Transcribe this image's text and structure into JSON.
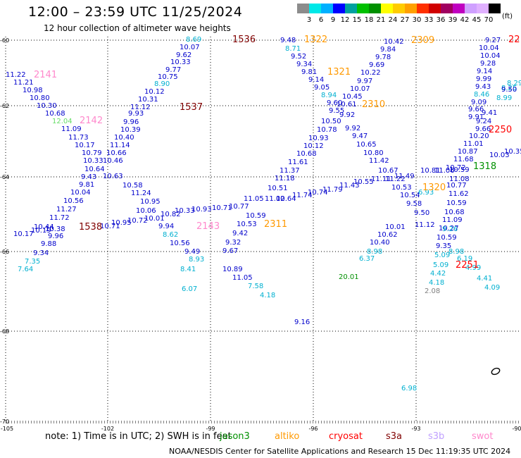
{
  "header": {
    "title": "12:00 – 23:59 UTC 11/25/2024",
    "subtitle": "12 hour collection of altimeter wave heights"
  },
  "legend": {
    "levels": [
      "3",
      "6",
      "9",
      "12",
      "15",
      "18",
      "21",
      "24",
      "27",
      "30",
      "33",
      "36",
      "39",
      "42",
      "45",
      "70"
    ],
    "colors": [
      "#8c8c8c",
      "#00e8e8",
      "#00b0ff",
      "#0000ff",
      "#00a0a0",
      "#00c000",
      "#009000",
      "#ffff00",
      "#ffcc00",
      "#ffa000",
      "#ff3000",
      "#d00000",
      "#a00060",
      "#c000c0",
      "#cfa0ff",
      "#e0b0ff",
      "#000000"
    ],
    "unit": "(ft)"
  },
  "footer": {
    "note": "note:  1) Time is in UTC;  2) SWH is in feet",
    "credit": "NOAA/NESDIS Center for Satellite Applications and Research    15 Dec 11:19:35 UTC 2024",
    "missions": [
      {
        "name": "jason3",
        "color": "#009000"
      },
      {
        "name": "altiko",
        "color": "#ff9900"
      },
      {
        "name": "cryosat",
        "color": "#ff0000"
      },
      {
        "name": "s3a",
        "color": "#800000"
      },
      {
        "name": "s3b",
        "color": "#c0a0ff"
      },
      {
        "name": "swot",
        "color": "#ff88cc"
      }
    ]
  },
  "map": {
    "lon_ticks": [
      "-105",
      "-102",
      "-99",
      "-96",
      "-93",
      "-90"
    ],
    "lat_ticks": [
      "-60",
      "-62",
      "-64",
      "-66",
      "-68",
      "-70"
    ],
    "track_ids": [
      {
        "text": "1536",
        "color": "#800000"
      },
      {
        "text": "1322",
        "color": "#ff9900"
      },
      {
        "text": "2309",
        "color": "#ff9900"
      },
      {
        "text": "22",
        "color": "#ff0000"
      },
      {
        "text": "2141",
        "color": "#ff88cc"
      },
      {
        "text": "1321",
        "color": "#ff9900"
      },
      {
        "text": "1537",
        "color": "#800000"
      },
      {
        "text": "2310",
        "color": "#ff9900"
      },
      {
        "text": "2142",
        "color": "#ff88cc"
      },
      {
        "text": "2250",
        "color": "#ff0000"
      },
      {
        "text": "1318",
        "color": "#009000"
      },
      {
        "text": "1538",
        "color": "#800000"
      },
      {
        "text": "2143",
        "color": "#ff88cc"
      },
      {
        "text": "2311",
        "color": "#ff9900"
      },
      {
        "text": "1320",
        "color": "#ff9900"
      },
      {
        "text": "2251",
        "color": "#ff0000"
      }
    ],
    "wave_labels": [
      {
        "v": "8.69",
        "c": "#00b0d0"
      },
      {
        "v": "10.07",
        "c": "#0000cc"
      },
      {
        "v": "9.62",
        "c": "#0000cc"
      },
      {
        "v": "10.33",
        "c": "#0000cc"
      },
      {
        "v": "9.77",
        "c": "#0000cc"
      },
      {
        "v": "10.75",
        "c": "#0000cc"
      },
      {
        "v": "8.90",
        "c": "#00b0d0"
      },
      {
        "v": "10.12",
        "c": "#0000cc"
      },
      {
        "v": "10.31",
        "c": "#0000cc"
      },
      {
        "v": "11.12",
        "c": "#0000cc"
      },
      {
        "v": "9.93",
        "c": "#0000cc"
      },
      {
        "v": "9.96",
        "c": "#0000cc"
      },
      {
        "v": "10.39",
        "c": "#0000cc"
      },
      {
        "v": "10.40",
        "c": "#0000cc"
      },
      {
        "v": "11.14",
        "c": "#0000cc"
      },
      {
        "v": "10.66",
        "c": "#0000cc"
      },
      {
        "v": "10.46",
        "c": "#0000cc"
      },
      {
        "v": "10.63",
        "c": "#0000cc"
      },
      {
        "v": "10.58",
        "c": "#0000cc"
      },
      {
        "v": "11.24",
        "c": "#0000cc"
      },
      {
        "v": "10.95",
        "c": "#0000cc"
      },
      {
        "v": "10.06",
        "c": "#0000cc"
      },
      {
        "v": "10.01",
        "c": "#0000cc"
      },
      {
        "v": "9.94",
        "c": "#0000cc"
      },
      {
        "v": "8.62",
        "c": "#00b0d0"
      },
      {
        "v": "10.56",
        "c": "#0000cc"
      },
      {
        "v": "9.49",
        "c": "#0000cc"
      },
      {
        "v": "8.93",
        "c": "#00b0d0"
      },
      {
        "v": "8.41",
        "c": "#00b0d0"
      },
      {
        "v": "6.07",
        "c": "#00b0d0"
      },
      {
        "v": "11.22",
        "c": "#0000cc"
      },
      {
        "v": "11.21",
        "c": "#0000cc"
      },
      {
        "v": "10.98",
        "c": "#0000cc"
      },
      {
        "v": "10.80",
        "c": "#0000cc"
      },
      {
        "v": "10.30",
        "c": "#0000cc"
      },
      {
        "v": "10.68",
        "c": "#0000cc"
      },
      {
        "v": "12.04",
        "c": "#66dd66"
      },
      {
        "v": "11.09",
        "c": "#0000cc"
      },
      {
        "v": "11.73",
        "c": "#0000cc"
      },
      {
        "v": "10.17",
        "c": "#0000cc"
      },
      {
        "v": "10.79",
        "c": "#0000cc"
      },
      {
        "v": "10.33",
        "c": "#0000cc"
      },
      {
        "v": "10.64",
        "c": "#0000cc"
      },
      {
        "v": "9.43",
        "c": "#0000cc"
      },
      {
        "v": "9.81",
        "c": "#0000cc"
      },
      {
        "v": "10.04",
        "c": "#0000cc"
      },
      {
        "v": "10.56",
        "c": "#0000cc"
      },
      {
        "v": "11.27",
        "c": "#0000cc"
      },
      {
        "v": "11.72",
        "c": "#0000cc"
      },
      {
        "v": "10.44",
        "c": "#0000cc"
      },
      {
        "v": "10.17",
        "c": "#0000cc"
      },
      {
        "v": "10.19",
        "c": "#0000cc"
      },
      {
        "v": "10.38",
        "c": "#0000cc"
      },
      {
        "v": "9.96",
        "c": "#0000cc"
      },
      {
        "v": "9.88",
        "c": "#0000cc"
      },
      {
        "v": "9.34",
        "c": "#0000cc"
      },
      {
        "v": "7.35",
        "c": "#00b0d0"
      },
      {
        "v": "7.64",
        "c": "#00b0d0"
      },
      {
        "v": "10.71",
        "c": "#0000cc"
      },
      {
        "v": "10.95",
        "c": "#0000cc"
      },
      {
        "v": "10.72",
        "c": "#0000cc"
      },
      {
        "v": "10.82",
        "c": "#0000cc"
      },
      {
        "v": "10.33",
        "c": "#0000cc"
      },
      {
        "v": "10.93",
        "c": "#0000cc"
      },
      {
        "v": "10.71",
        "c": "#0000cc"
      },
      {
        "v": "10.77",
        "c": "#0000cc"
      },
      {
        "v": "11.05",
        "c": "#0000cc"
      },
      {
        "v": "10.59",
        "c": "#0000cc"
      },
      {
        "v": "10.53",
        "c": "#0000cc"
      },
      {
        "v": "9.42",
        "c": "#0000cc"
      },
      {
        "v": "9.32",
        "c": "#0000cc"
      },
      {
        "v": "9.67",
        "c": "#0000cc"
      },
      {
        "v": "10.89",
        "c": "#0000cc"
      },
      {
        "v": "11.05",
        "c": "#0000cc"
      },
      {
        "v": "7.58",
        "c": "#00b0d0"
      },
      {
        "v": "4.18",
        "c": "#00b0d0"
      },
      {
        "v": "9.16",
        "c": "#0000cc"
      },
      {
        "v": "9.48",
        "c": "#0000cc"
      },
      {
        "v": "8.71",
        "c": "#00b0d0"
      },
      {
        "v": "9.52",
        "c": "#0000cc"
      },
      {
        "v": "9.34",
        "c": "#0000cc"
      },
      {
        "v": "9.81",
        "c": "#0000cc"
      },
      {
        "v": "9.14",
        "c": "#0000cc"
      },
      {
        "v": "9.05",
        "c": "#0000cc"
      },
      {
        "v": "8.94",
        "c": "#00b0d0"
      },
      {
        "v": "9.60",
        "c": "#0000cc"
      },
      {
        "v": "9.55",
        "c": "#0000cc"
      },
      {
        "v": "10.50",
        "c": "#0000cc"
      },
      {
        "v": "10.78",
        "c": "#0000cc"
      },
      {
        "v": "10.93",
        "c": "#0000cc"
      },
      {
        "v": "10.12",
        "c": "#0000cc"
      },
      {
        "v": "10.68",
        "c": "#0000cc"
      },
      {
        "v": "11.61",
        "c": "#0000cc"
      },
      {
        "v": "11.37",
        "c": "#0000cc"
      },
      {
        "v": "11.18",
        "c": "#0000cc"
      },
      {
        "v": "10.51",
        "c": "#0000cc"
      },
      {
        "v": "11.02",
        "c": "#0000cc"
      },
      {
        "v": "10.64",
        "c": "#0000cc"
      },
      {
        "v": "11.74",
        "c": "#0000cc"
      },
      {
        "v": "10.74",
        "c": "#0000cc"
      },
      {
        "v": "11.79",
        "c": "#0000cc"
      },
      {
        "v": "11.43",
        "c": "#0000cc"
      },
      {
        "v": "10.55",
        "c": "#0000cc"
      },
      {
        "v": "11.11",
        "c": "#0000cc"
      },
      {
        "v": "10.42",
        "c": "#0000cc"
      },
      {
        "v": "9.84",
        "c": "#0000cc"
      },
      {
        "v": "9.78",
        "c": "#0000cc"
      },
      {
        "v": "9.69",
        "c": "#0000cc"
      },
      {
        "v": "10.22",
        "c": "#0000cc"
      },
      {
        "v": "9.97",
        "c": "#0000cc"
      },
      {
        "v": "10.07",
        "c": "#0000cc"
      },
      {
        "v": "10.45",
        "c": "#0000cc"
      },
      {
        "v": "10.61",
        "c": "#0000cc"
      },
      {
        "v": "9.92",
        "c": "#0000cc"
      },
      {
        "v": "9.92",
        "c": "#0000cc"
      },
      {
        "v": "9.47",
        "c": "#0000cc"
      },
      {
        "v": "10.65",
        "c": "#0000cc"
      },
      {
        "v": "10.80",
        "c": "#0000cc"
      },
      {
        "v": "11.42",
        "c": "#0000cc"
      },
      {
        "v": "10.67",
        "c": "#0000cc"
      },
      {
        "v": "11.22",
        "c": "#0000cc"
      },
      {
        "v": "11.49",
        "c": "#0000cc"
      },
      {
        "v": "10.53",
        "c": "#0000cc"
      },
      {
        "v": "10.54",
        "c": "#0000cc"
      },
      {
        "v": "9.58",
        "c": "#0000cc"
      },
      {
        "v": "9.50",
        "c": "#0000cc"
      },
      {
        "v": "11.12",
        "c": "#0000cc"
      },
      {
        "v": "10.01",
        "c": "#0000cc"
      },
      {
        "v": "10.62",
        "c": "#0000cc"
      },
      {
        "v": "10.40",
        "c": "#0000cc"
      },
      {
        "v": "8.98",
        "c": "#00b0d0"
      },
      {
        "v": "6.37",
        "c": "#00b0d0"
      },
      {
        "v": "20.01",
        "c": "#009000"
      },
      {
        "v": "6.98",
        "c": "#00b0d0"
      },
      {
        "v": "9.27",
        "c": "#0000cc"
      },
      {
        "v": "10.04",
        "c": "#0000cc"
      },
      {
        "v": "10.04",
        "c": "#0000cc"
      },
      {
        "v": "9.28",
        "c": "#0000cc"
      },
      {
        "v": "9.14",
        "c": "#0000cc"
      },
      {
        "v": "9.99",
        "c": "#0000cc"
      },
      {
        "v": "9.43",
        "c": "#0000cc"
      },
      {
        "v": "8.46",
        "c": "#00b0d0"
      },
      {
        "v": "9.09",
        "c": "#0000cc"
      },
      {
        "v": "9.66",
        "c": "#0000cc"
      },
      {
        "v": "9.91",
        "c": "#0000cc"
      },
      {
        "v": "9.41",
        "c": "#0000cc"
      },
      {
        "v": "9.24",
        "c": "#0000cc"
      },
      {
        "v": "9.66",
        "c": "#0000cc"
      },
      {
        "v": "10.20",
        "c": "#0000cc"
      },
      {
        "v": "11.01",
        "c": "#0000cc"
      },
      {
        "v": "10.87",
        "c": "#0000cc"
      },
      {
        "v": "11.68",
        "c": "#0000cc"
      },
      {
        "v": "10.72",
        "c": "#0000cc"
      },
      {
        "v": "11.06",
        "c": "#0000cc"
      },
      {
        "v": "10.81",
        "c": "#0000cc"
      },
      {
        "v": "11.08",
        "c": "#0000cc"
      },
      {
        "v": "10.77",
        "c": "#0000cc"
      },
      {
        "v": "11.62",
        "c": "#0000cc"
      },
      {
        "v": "10.59",
        "c": "#0000cc"
      },
      {
        "v": "10.68",
        "c": "#0000cc"
      },
      {
        "v": "11.09",
        "c": "#0000cc"
      },
      {
        "v": "10.27",
        "c": "#0000cc"
      },
      {
        "v": "10.59",
        "c": "#0000cc"
      },
      {
        "v": "9.35",
        "c": "#0000cc"
      },
      {
        "v": "8.98",
        "c": "#00b0d0"
      },
      {
        "v": "5.09",
        "c": "#00b0d0"
      },
      {
        "v": "5.09",
        "c": "#00b0d0"
      },
      {
        "v": "4.42",
        "c": "#00b0d0"
      },
      {
        "v": "4.18",
        "c": "#00b0d0"
      },
      {
        "v": "2.08",
        "c": "#808080"
      },
      {
        "v": "6.19",
        "c": "#00b0d0"
      },
      {
        "v": "4.99",
        "c": "#00b0d0"
      },
      {
        "v": "4.41",
        "c": "#00b0d0"
      },
      {
        "v": "4.09",
        "c": "#00b0d0"
      },
      {
        "v": "8.99",
        "c": "#00b0d0"
      },
      {
        "v": "8.25",
        "c": "#00b0d0"
      },
      {
        "v": "9.50",
        "c": "#0000cc"
      },
      {
        "v": "8.29",
        "c": "#00b0d0"
      },
      {
        "v": "10.03",
        "c": "#0000cc"
      },
      {
        "v": "10.35",
        "c": "#0000cc"
      },
      {
        "v": "6.93",
        "c": "#00b0d0"
      },
      {
        "v": "9.26",
        "c": "#00b0d0"
      },
      {
        "v": "10.59",
        "c": "#0000cc"
      }
    ]
  }
}
